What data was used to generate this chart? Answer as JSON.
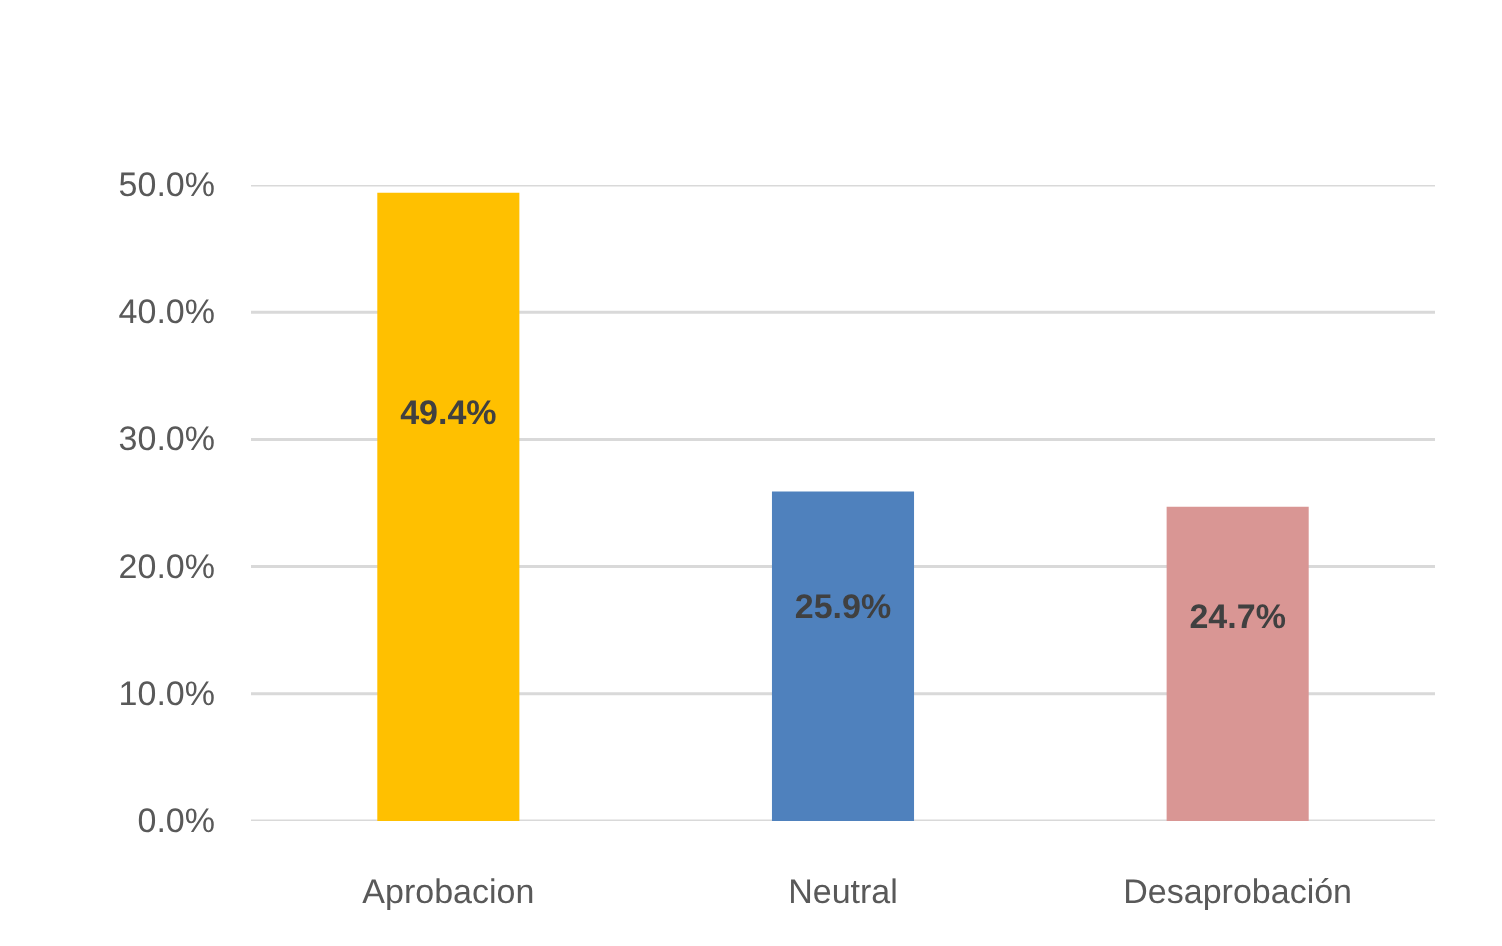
{
  "chart_data": {
    "type": "bar",
    "categories": [
      "Aprobacion",
      "Neutral",
      "Desaprobación"
    ],
    "values": [
      49.4,
      25.9,
      24.7
    ],
    "colors": [
      "#ffc000",
      "#4f81bd",
      "#d99694"
    ],
    "value_labels": [
      "49.4%",
      "25.9%",
      "24.7%"
    ],
    "ylim": [
      0,
      50
    ],
    "yticks": [
      {
        "value": 0,
        "label": "0.0%"
      },
      {
        "value": 10,
        "label": "10.0%"
      },
      {
        "value": 20,
        "label": "20.0%"
      },
      {
        "value": 30,
        "label": "30.0%"
      },
      {
        "value": 40,
        "label": "40.0%"
      },
      {
        "value": 50,
        "label": "50.0%"
      }
    ],
    "grid": "y"
  }
}
